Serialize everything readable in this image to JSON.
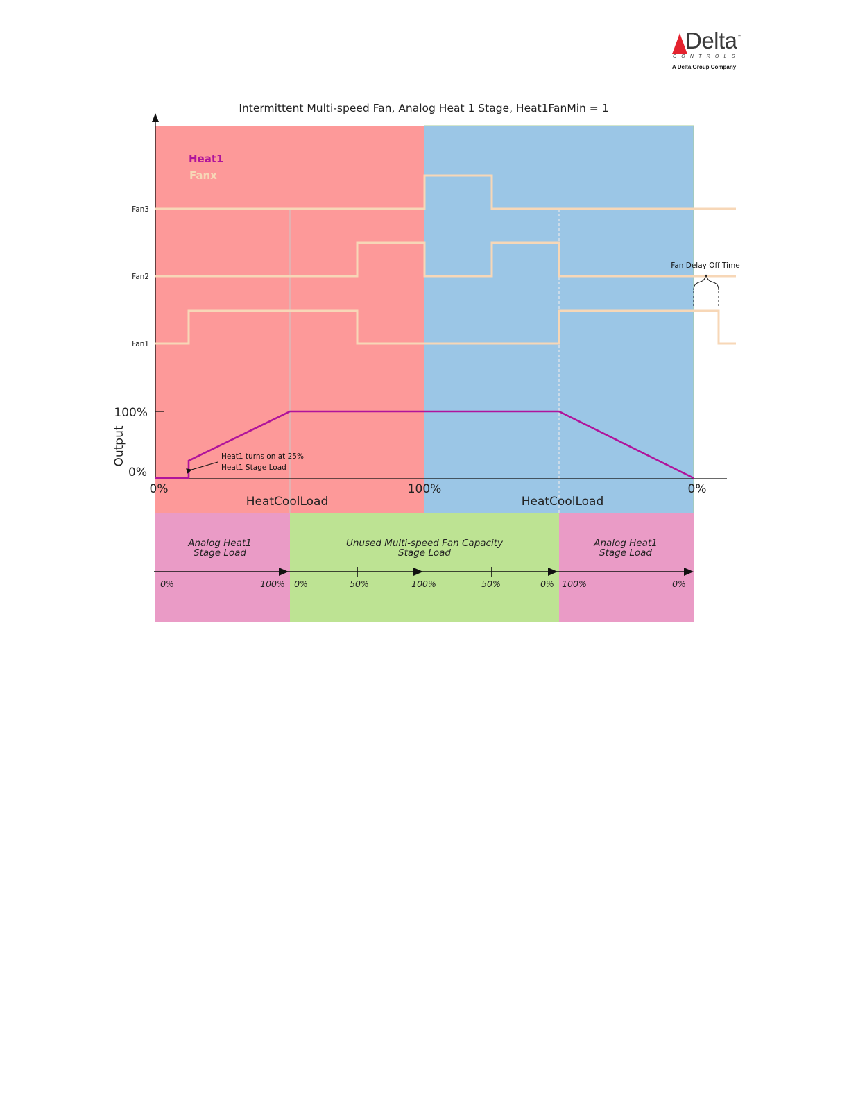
{
  "logo": {
    "brand": "Delta",
    "tm": "™",
    "sub": "CONTROLS",
    "group": "A Delta Group Company",
    "accent_color": "#e4222e"
  },
  "title": "Intermittent Multi-speed Fan, Analog Heat 1 Stage, Heat1FanMin = 1",
  "legend": {
    "heat1": "Heat1",
    "fanx": "Fanx",
    "heat1_color": "#b0149b",
    "fanx_color": "#f7d7b7"
  },
  "y_axis": {
    "label": "Output",
    "fan3": "Fan3",
    "fan2": "Fan2",
    "fan1": "Fan1",
    "pct100": "100%",
    "pct0": "0%"
  },
  "x_axis": {
    "left_zero": "0%",
    "middle_100": "100%",
    "right_zero": "0%",
    "label_left": "HeatCoolLoad",
    "label_right": "HeatCoolLoad"
  },
  "regions": {
    "heating_color": "#fd9999",
    "cooling_color": "#9bc6e6",
    "stage_color": "#ea9bc6",
    "unused_color": "#bde393"
  },
  "annotations": {
    "heat1_on_line1": "Heat1 turns on at 25%",
    "heat1_on_line2": "Heat1 Stage Load",
    "fan_delay": "Fan Delay Off Time"
  },
  "bottom": {
    "left_title1": "Analog Heat1",
    "left_title2": "Stage Load",
    "mid_title1": "Unused Multi-speed Fan Capacity",
    "mid_title2": "Stage Load",
    "right_title1": "Analog Heat1",
    "right_title2": "Stage Load",
    "ticks": [
      "0%",
      "100%",
      "0%",
      "50%",
      "100%",
      "50%",
      "0%",
      "100%",
      "0%"
    ]
  }
}
